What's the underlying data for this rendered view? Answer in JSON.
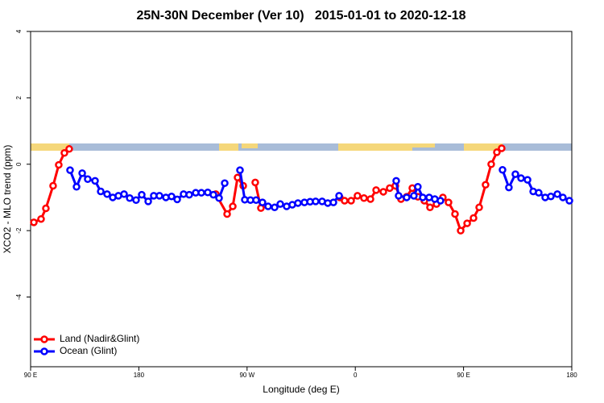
{
  "chart_data": {
    "type": "line",
    "title": "25N-30N December (Ver 10)   2015-01-01 to 2020-12-18",
    "x_label": "Longitude (deg E)",
    "y_label": "XCO2 - MLO trend (ppm)",
    "xlim": [
      90,
      540
    ],
    "xticks": [
      {
        "value": 90,
        "label": "90 E"
      },
      180,
      {
        "value": 270,
        "label": "90 W"
      },
      {
        "value": 360,
        "label": "0"
      },
      {
        "value": 450,
        "label": "90 E"
      },
      {
        "value": 540,
        "label": "180"
      }
    ],
    "ylim": [
      -6.1,
      4
    ],
    "yticks": [
      -4,
      -2,
      0,
      2,
      4
    ],
    "legend": "bottom-left",
    "series": [
      {
        "name": "Land (Nadir&Glint)",
        "color": "#ff0000",
        "x": [
          92.7,
          98.7,
          102.7,
          108.7,
          113.4,
          118.1,
          122.1,
          200,
          244,
          253.4,
          258.1,
          262.1,
          266.8,
          270,
          276.8,
          281.5,
          320,
          347.1,
          351.1,
          356.5,
          361.8,
          367.2,
          372.6,
          377.3,
          383.3,
          388.6,
          393.3,
          398,
          402.7,
          407.4,
          412,
          417.4,
          422.1,
          427.5,
          432.8,
          437.5,
          442.9,
          447.6,
          453,
          458.3,
          463,
          468.3,
          473,
          477.7,
          481.7
        ],
        "values": [
          -1.75,
          -1.65,
          -1.33,
          -0.65,
          -0.02,
          0.34,
          0.46,
          null,
          -0.9,
          -1.5,
          -1.27,
          -0.4,
          -0.65,
          null,
          -0.55,
          -1.32,
          null,
          -1.0,
          -1.1,
          -1.1,
          -0.95,
          -1.02,
          -1.05,
          -0.78,
          -0.83,
          -0.72,
          -0.65,
          -1.05,
          -0.98,
          -0.72,
          -0.98,
          -1.1,
          -1.3,
          -1.2,
          -1.0,
          -1.15,
          -1.5,
          -2.0,
          -1.78,
          -1.62,
          -1.3,
          -0.62,
          0.0,
          0.36,
          0.48
        ]
      },
      {
        "name": "Ocean (Glint)",
        "color": "#0000ff",
        "x": [
          122.8,
          128.2,
          132.9,
          137.5,
          143.6,
          148.3,
          153.6,
          158.3,
          163,
          167.7,
          172.4,
          177.7,
          182.4,
          187.8,
          192.4,
          197.1,
          202.5,
          207.2,
          211.9,
          217.2,
          221.9,
          227.3,
          232,
          237.3,
          242,
          246.7,
          251.4,
          258,
          264.1,
          268.1,
          272.8,
          277.5,
          282.8,
          287.5,
          292.9,
          297.6,
          302.9,
          307.6,
          312.3,
          317.7,
          322.4,
          327,
          332.4,
          337.1,
          341.8,
          346.5,
          370,
          394,
          396,
          402.7,
          408.7,
          412,
          416.1,
          421.4,
          426.1,
          430.8,
          460,
          482.4,
          487.7,
          493.1,
          497.8,
          503.2,
          507.9,
          512.5,
          517.9,
          522.6,
          528,
          532.6,
          538
        ],
        "values": [
          -0.18,
          -0.68,
          -0.27,
          -0.45,
          -0.5,
          -0.82,
          -0.9,
          -1.0,
          -0.95,
          -0.9,
          -1.02,
          -1.08,
          -0.92,
          -1.12,
          -0.95,
          -0.95,
          -1.0,
          -0.97,
          -1.06,
          -0.9,
          -0.92,
          -0.86,
          -0.86,
          -0.85,
          -0.92,
          -1.02,
          -0.57,
          null,
          -0.18,
          -1.07,
          -1.08,
          -1.08,
          -1.15,
          -1.27,
          -1.3,
          -1.2,
          -1.27,
          -1.22,
          -1.17,
          -1.15,
          -1.13,
          -1.12,
          -1.12,
          -1.17,
          -1.15,
          -0.95,
          null,
          -0.5,
          -0.95,
          -1.0,
          -0.95,
          -0.68,
          -1.0,
          -1.0,
          -1.05,
          -1.1,
          null,
          -0.17,
          -0.7,
          -0.3,
          -0.42,
          -0.47,
          -0.82,
          -0.86,
          -1.0,
          -0.97,
          -0.9,
          -1.0,
          -1.1
        ]
      }
    ]
  }
}
